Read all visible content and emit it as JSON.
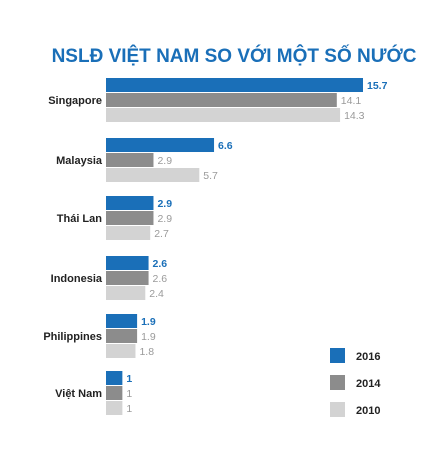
{
  "chart_data": {
    "type": "bar",
    "orientation": "horizontal",
    "title": "NSLĐ VIỆT NAM SO VỚI MỘT SỐ NƯỚC",
    "categories": [
      "Singapore",
      "Malaysia",
      "Thái Lan",
      "Indonesia",
      "Philippines",
      "Việt Nam"
    ],
    "series": [
      {
        "name": "2016",
        "color": "#1a6fb8",
        "label_color": "#1a6fb8",
        "bold": true,
        "values": [
          15.7,
          6.6,
          2.9,
          2.6,
          1.9,
          1
        ],
        "labels": [
          "15.7",
          "6.6",
          "2.9",
          "2.6",
          "1.9",
          "1"
        ]
      },
      {
        "name": "2014",
        "color": "#8c8c8c",
        "label_color": "#9a9a9a",
        "bold": false,
        "values": [
          14.1,
          2.9,
          2.9,
          2.6,
          1.9,
          1
        ],
        "labels": [
          "14.1",
          "2.9",
          "2.9",
          "2.6",
          "1.9",
          "1"
        ]
      },
      {
        "name": "2010",
        "color": "#d3d3d3",
        "label_color": "#9a9a9a",
        "bold": false,
        "values": [
          14.3,
          5.7,
          2.7,
          2.4,
          1.8,
          1
        ],
        "labels": [
          "14.3",
          "5.7",
          "2.7",
          "2.4",
          "1.8",
          "1"
        ]
      }
    ],
    "xlim": [
      0,
      15.7
    ],
    "grid": false,
    "legend_position": "bottom-right"
  }
}
